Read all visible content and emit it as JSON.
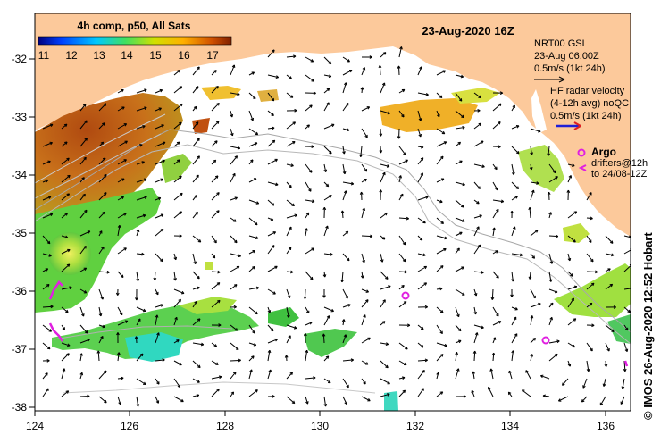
{
  "title": "23-Aug-2020 16Z",
  "colorbar": {
    "title": "4h comp, p50, All Sats",
    "labels": [
      "11",
      "12",
      "13",
      "14",
      "15",
      "16",
      "17"
    ]
  },
  "axes": {
    "x_labels": [
      "124",
      "126",
      "128",
      "130",
      "132",
      "134",
      "136"
    ],
    "y_labels": [
      "-32",
      "-33",
      "-34",
      "-35",
      "-36",
      "-37",
      "-38"
    ]
  },
  "legend": {
    "nrt_title": "NRT00 GSL",
    "nrt_time": "23-Aug 06:00Z",
    "nrt_scale": "0.5m/s (1kt 24h)",
    "hf_title": "HF radar velocity",
    "hf_avg": "(4-12h avg) noQC",
    "hf_scale": "0.5m/s (1kt 24h)",
    "argo_label": "Argo",
    "drifters_line1": "drifters@12h",
    "drifters_line2": "to 24/08-12Z"
  },
  "credit": "© IMOS 26-Aug-2020 12:52 Hobart",
  "colors": {
    "land": "#fcc99b",
    "hf_arrow": "#1f1fd6",
    "marker": "#e020e0",
    "isobath": "#a8a8a8"
  }
}
